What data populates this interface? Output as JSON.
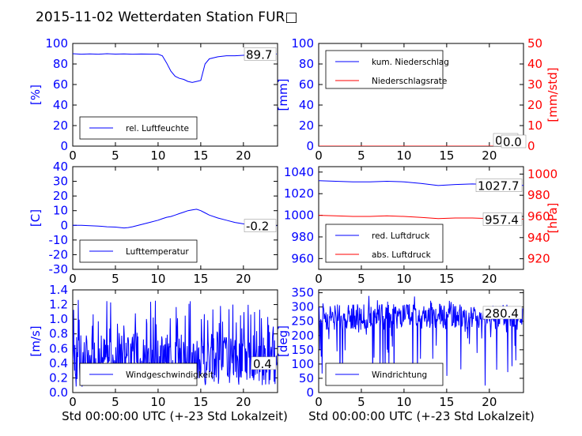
{
  "title": "2015-11-02 Wetterdaten Station FUR□",
  "xlabel": "Std 00:00:00 UTC (+-23 Std Lokalzeit)",
  "colors": {
    "blue": "#0000ff",
    "red": "#ff0000",
    "black": "#000000"
  },
  "chart_data": [
    {
      "id": "humidity",
      "type": "line",
      "xlim": [
        0,
        24
      ],
      "ylim": [
        0,
        100
      ],
      "xticks": [
        0,
        5,
        10,
        15,
        20
      ],
      "yticks": [
        0,
        20,
        40,
        60,
        80,
        100
      ],
      "ylabel": "[%]",
      "legend": "bottom-left",
      "last_value": "89.7",
      "series": [
        {
          "name": "rel. Luftfeuchte",
          "color": "#0000ff",
          "x": [
            0,
            1,
            2,
            3,
            4,
            5,
            6,
            7,
            8,
            9,
            10,
            10.5,
            11,
            11.5,
            12,
            12.5,
            13,
            13.5,
            14,
            14.5,
            15,
            15.5,
            16,
            17,
            18,
            19,
            20,
            21,
            22,
            23,
            23.9
          ],
          "y": [
            90,
            89.5,
            89.8,
            89.5,
            90,
            89.6,
            89.8,
            89.5,
            89.7,
            89.6,
            89.5,
            88,
            81,
            73,
            68,
            66,
            65,
            63,
            62,
            63,
            64,
            80,
            85,
            87,
            88,
            88,
            88.5,
            89,
            89.5,
            89.7,
            89.7
          ]
        }
      ]
    },
    {
      "id": "precipitation",
      "type": "line",
      "xlim": [
        0,
        24
      ],
      "ylim": [
        0,
        100
      ],
      "ylim_right": [
        0,
        50
      ],
      "xticks": [
        0,
        5,
        10,
        15,
        20
      ],
      "yticks": [
        0,
        20,
        40,
        60,
        80,
        100
      ],
      "yticks_right": [
        0,
        10,
        20,
        30,
        40,
        50
      ],
      "ylabel": "[mm]",
      "ylabel_right": "[mm/std]",
      "legend": "top-left",
      "last_value": "0.0",
      "last_value_right": "0.0",
      "series": [
        {
          "name": "kum. Niederschlag",
          "color": "#0000ff",
          "x": [
            0,
            24
          ],
          "y": [
            0,
            0
          ]
        },
        {
          "name": "Niederschlagsrate",
          "color": "#ff0000",
          "axis": "right",
          "x": [
            0,
            24
          ],
          "y": [
            0,
            0
          ]
        }
      ]
    },
    {
      "id": "temperature",
      "type": "line",
      "xlim": [
        0,
        24
      ],
      "ylim": [
        -30,
        40
      ],
      "xticks": [
        0,
        5,
        10,
        15,
        20
      ],
      "yticks": [
        -30,
        -20,
        -10,
        0,
        10,
        20,
        30,
        40
      ],
      "ylabel": "[C]",
      "legend": "bottom-left",
      "last_value": "-0.2",
      "series": [
        {
          "name": "Lufttemperatur",
          "color": "#0000ff",
          "x": [
            0,
            1,
            2,
            3,
            4,
            5,
            6,
            6.5,
            7,
            8,
            9,
            10,
            10.5,
            11,
            11.5,
            12,
            12.5,
            13,
            13.5,
            14,
            14.5,
            15,
            15.5,
            16,
            17,
            18,
            19,
            20,
            21,
            22,
            23,
            23.9
          ],
          "y": [
            0,
            0,
            -0.3,
            -0.5,
            -1,
            -1.2,
            -1.8,
            -1.5,
            -1,
            0.5,
            2,
            3.5,
            4.5,
            5.5,
            6,
            7,
            8,
            9,
            10,
            10.5,
            11,
            10,
            8.5,
            7,
            5,
            3.5,
            2,
            1,
            0.3,
            -0.2,
            -0.2,
            -0.2
          ]
        }
      ]
    },
    {
      "id": "pressure",
      "type": "line",
      "xlim": [
        0,
        24
      ],
      "ylim": [
        950,
        1045
      ],
      "ylim_right": [
        910,
        1007
      ],
      "xticks": [
        0,
        5,
        10,
        15,
        20
      ],
      "yticks": [
        960,
        980,
        1000,
        1020,
        1040
      ],
      "yticks_right": [
        920,
        940,
        960,
        980,
        1000
      ],
      "ylabel_right": "[hPa]",
      "legend": "bottom-left",
      "last_value": "1027.7",
      "last_value_right": "957.4",
      "series": [
        {
          "name": "red. Luftdruck",
          "color": "#0000ff",
          "x": [
            0,
            2,
            4,
            6,
            8,
            10,
            12,
            14,
            16,
            18,
            20,
            22,
            24
          ],
          "y": [
            1032,
            1031.5,
            1031,
            1031,
            1031.5,
            1031,
            1029.5,
            1027.5,
            1028.5,
            1029,
            1028.5,
            1028,
            1027.7
          ]
        },
        {
          "name": "abs. Luftdruck",
          "color": "#ff0000",
          "axis": "right",
          "x": [
            0,
            2,
            4,
            6,
            8,
            10,
            12,
            14,
            16,
            18,
            20,
            22,
            24
          ],
          "y": [
            961,
            960.5,
            960,
            960,
            960.5,
            960,
            959,
            958,
            958.5,
            958.5,
            958,
            957.8,
            957.4
          ]
        }
      ]
    },
    {
      "id": "windspeed",
      "type": "line",
      "xlim": [
        0,
        24
      ],
      "ylim": [
        0,
        1.4
      ],
      "xticks": [
        0,
        5,
        10,
        15,
        20
      ],
      "yticks": [
        0.0,
        0.2,
        0.4,
        0.6,
        0.8,
        1.0,
        1.2,
        1.4
      ],
      "ylabel": "[m/s]",
      "legend": "bottom-left",
      "last_value": "0.4",
      "series": [
        {
          "name": "Windgeschwindigkeit",
          "color": "#0000ff",
          "noise": {
            "mean": 0.45,
            "amp": 0.35,
            "spikes": 0.25,
            "n": 480,
            "min": 0.02,
            "max": 1.28,
            "seed": 7
          }
        }
      ]
    },
    {
      "id": "winddirection",
      "type": "line",
      "xlim": [
        0,
        24
      ],
      "ylim": [
        0,
        360
      ],
      "xticks": [
        0,
        5,
        10,
        15,
        20
      ],
      "yticks": [
        0,
        50,
        100,
        150,
        200,
        250,
        300,
        350
      ],
      "ylabel": "[deg]",
      "legend": "bottom-left",
      "last_value": "280.4",
      "series": [
        {
          "name": "Windrichtung",
          "color": "#0000ff",
          "noise": {
            "mean": 265,
            "amp": 45,
            "spikes": 0.15,
            "n": 480,
            "min": 20,
            "max": 340,
            "seed": 13
          }
        }
      ]
    }
  ]
}
